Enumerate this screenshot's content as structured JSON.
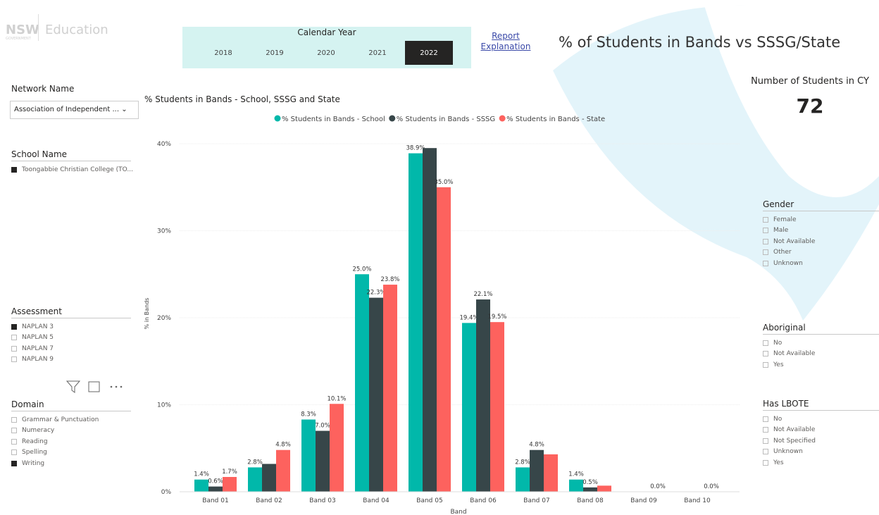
{
  "header": {
    "logo_mark": "NSW",
    "logo_sub": "GOVERNMENT",
    "logo_text": "Education",
    "report_link": "Report Explanation",
    "page_title": "% of Students in Bands vs SSSG/State"
  },
  "calendar_year": {
    "title": "Calendar Year",
    "options": [
      {
        "label": "2018",
        "selected": false
      },
      {
        "label": "2019",
        "selected": false
      },
      {
        "label": "2020",
        "selected": false
      },
      {
        "label": "2021",
        "selected": false
      },
      {
        "label": "2022",
        "selected": true
      }
    ]
  },
  "card": {
    "label": "Number of Students in CY",
    "value": 72
  },
  "filters": {
    "network": {
      "title": "Network Name",
      "value": "Association of Independent ..."
    },
    "school": {
      "title": "School Name",
      "items": [
        {
          "label": "Toongabbie Christian College (TO...",
          "checked": true
        }
      ]
    },
    "assessment": {
      "title": "Assessment",
      "items": [
        {
          "label": "NAPLAN 3",
          "checked": true
        },
        {
          "label": "NAPLAN 5",
          "checked": false
        },
        {
          "label": "NAPLAN 7",
          "checked": false
        },
        {
          "label": "NAPLAN 9",
          "checked": false
        }
      ]
    },
    "domain": {
      "title": "Domain",
      "items": [
        {
          "label": "Grammar & Punctuation",
          "checked": false
        },
        {
          "label": "Numeracy",
          "checked": false
        },
        {
          "label": "Reading",
          "checked": false
        },
        {
          "label": "Spelling",
          "checked": false
        },
        {
          "label": "Writing",
          "checked": true
        }
      ]
    },
    "gender": {
      "title": "Gender",
      "items": [
        {
          "label": "Female",
          "checked": false
        },
        {
          "label": "Male",
          "checked": false
        },
        {
          "label": "Not Available",
          "checked": false
        },
        {
          "label": "Other",
          "checked": false
        },
        {
          "label": "Unknown",
          "checked": false
        }
      ]
    },
    "aboriginal": {
      "title": "Aboriginal",
      "items": [
        {
          "label": "No",
          "checked": false
        },
        {
          "label": "Not Available",
          "checked": false
        },
        {
          "label": "Yes",
          "checked": false
        }
      ]
    },
    "lbote": {
      "title": "Has LBOTE",
      "items": [
        {
          "label": "No",
          "checked": false
        },
        {
          "label": "Not Available",
          "checked": false
        },
        {
          "label": "Not Specified",
          "checked": false
        },
        {
          "label": "Unknown",
          "checked": false
        },
        {
          "label": "Yes",
          "checked": false
        }
      ]
    }
  },
  "chart_data": {
    "type": "bar",
    "title": "% Students in Bands - School, SSSG and State",
    "y_label": "% in Bands",
    "x_label": "Band",
    "categories": [
      "Band 01",
      "Band 02",
      "Band 03",
      "Band 04",
      "Band 05",
      "Band 06",
      "Band 07",
      "Band 08",
      "Band 09",
      "Band 10"
    ],
    "series": [
      {
        "name": "% Students in Bands - School",
        "color": "#01b8aa",
        "values": [
          1.4,
          2.8,
          8.3,
          25.0,
          38.9,
          19.4,
          2.8,
          1.4,
          0,
          0
        ],
        "value_labels": [
          "1.4%",
          "2.8%",
          "8.3%",
          "25.0%",
          "38.9%",
          "19.4%",
          "2.8%",
          "1.4%",
          null,
          null
        ]
      },
      {
        "name": "% Students in Bands - SSSG",
        "color": "#374649",
        "values": [
          0.6,
          3.2,
          7.0,
          22.3,
          39.5,
          22.1,
          4.8,
          0.5,
          0,
          0
        ],
        "value_labels": [
          "0.6%",
          null,
          "7.0%",
          "22.3%",
          null,
          "22.1%",
          "4.8%",
          "0.5%",
          null,
          null
        ]
      },
      {
        "name": "% Students in Bands - State",
        "color": "#fd625e",
        "values": [
          1.7,
          4.8,
          10.1,
          23.8,
          35.0,
          19.5,
          4.3,
          0.7,
          0.0,
          0.0
        ],
        "value_labels": [
          "1.7%",
          "4.8%",
          "10.1%",
          "23.8%",
          "35.0%",
          "19.5%",
          null,
          null,
          "0.0%",
          "0.0%"
        ]
      }
    ],
    "ylim": [
      0,
      40
    ],
    "yticks": [
      {
        "value": 0,
        "label": "0%"
      },
      {
        "value": 10,
        "label": "10%"
      },
      {
        "value": 20,
        "label": "20%"
      },
      {
        "value": 30,
        "label": "30%"
      },
      {
        "value": 40,
        "label": "40%"
      }
    ],
    "grid": true,
    "legend": "top"
  }
}
